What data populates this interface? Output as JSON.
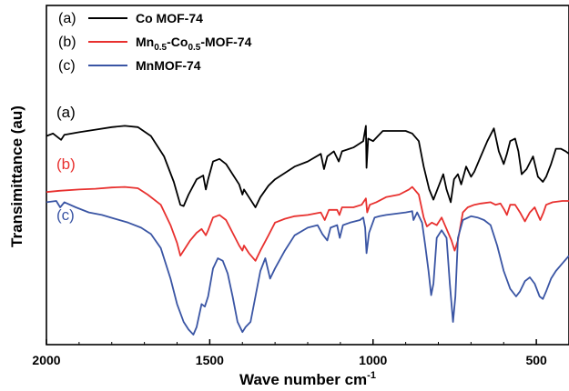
{
  "chart_data": {
    "type": "line",
    "xlabel": "Wave number cm",
    "xlabel_superscript": "-1",
    "ylabel": "Transimittance (au)",
    "xlim": [
      2000,
      400
    ],
    "x_reversed": true,
    "x_ticks": [
      2000,
      1500,
      1000,
      500
    ],
    "y_ticks": [],
    "ylim": [
      0,
      100
    ],
    "legend_position": "top-left",
    "series": [
      {
        "name": "Co MOF-74",
        "letter": "(a)",
        "color": "#000000",
        "points": [
          [
            2000,
            78
          ],
          [
            1980,
            79
          ],
          [
            1955,
            76.5
          ],
          [
            1945,
            78.5
          ],
          [
            1900,
            79.5
          ],
          [
            1850,
            80.5
          ],
          [
            1800,
            81.5
          ],
          [
            1760,
            82
          ],
          [
            1720,
            81.5
          ],
          [
            1680,
            78
          ],
          [
            1640,
            70
          ],
          [
            1610,
            60
          ],
          [
            1590,
            51
          ],
          [
            1580,
            50.5
          ],
          [
            1565,
            55
          ],
          [
            1540,
            61
          ],
          [
            1520,
            62.5
          ],
          [
            1512,
            57
          ],
          [
            1505,
            61
          ],
          [
            1490,
            68
          ],
          [
            1470,
            69
          ],
          [
            1450,
            67
          ],
          [
            1430,
            63
          ],
          [
            1410,
            59
          ],
          [
            1400,
            55
          ],
          [
            1395,
            57
          ],
          [
            1380,
            54
          ],
          [
            1360,
            50
          ],
          [
            1345,
            54
          ],
          [
            1320,
            58.5
          ],
          [
            1300,
            61
          ],
          [
            1270,
            63.5
          ],
          [
            1240,
            66
          ],
          [
            1200,
            68
          ],
          [
            1160,
            71
          ],
          [
            1150,
            65
          ],
          [
            1140,
            70
          ],
          [
            1120,
            72
          ],
          [
            1105,
            68
          ],
          [
            1095,
            72
          ],
          [
            1060,
            73.5
          ],
          [
            1030,
            76
          ],
          [
            1022,
            82
          ],
          [
            1020,
            65.5
          ],
          [
            1015,
            77
          ],
          [
            1000,
            76
          ],
          [
            985,
            78
          ],
          [
            970,
            80
          ],
          [
            950,
            80
          ],
          [
            900,
            80
          ],
          [
            880,
            79
          ],
          [
            860,
            76
          ],
          [
            845,
            66
          ],
          [
            828,
            57
          ],
          [
            815,
            53
          ],
          [
            800,
            58
          ],
          [
            785,
            63
          ],
          [
            775,
            57
          ],
          [
            762,
            52
          ],
          [
            752,
            61
          ],
          [
            740,
            63
          ],
          [
            730,
            59
          ],
          [
            715,
            66
          ],
          [
            700,
            62
          ],
          [
            690,
            64
          ],
          [
            670,
            70
          ],
          [
            650,
            76
          ],
          [
            630,
            81
          ],
          [
            615,
            72
          ],
          [
            600,
            67
          ],
          [
            590,
            71
          ],
          [
            580,
            76
          ],
          [
            565,
            77
          ],
          [
            555,
            72
          ],
          [
            545,
            63
          ],
          [
            530,
            65
          ],
          [
            510,
            70
          ],
          [
            495,
            62
          ],
          [
            480,
            60
          ],
          [
            470,
            62
          ],
          [
            455,
            67
          ],
          [
            440,
            73
          ],
          [
            425,
            73
          ],
          [
            410,
            72
          ],
          [
            400,
            71
          ]
        ]
      },
      {
        "name": "Mn0.5-Co0.5-MOF-74",
        "name_parts": {
          "prefix": "Mn",
          "sub1": "0.5",
          "mid": "-Co",
          "sub2": "0.5",
          "suffix": "-MOF-74"
        },
        "letter": "(b)",
        "color": "#e8312f",
        "points": [
          [
            2000,
            56
          ],
          [
            1960,
            56.5
          ],
          [
            1900,
            57
          ],
          [
            1850,
            57.3
          ],
          [
            1800,
            57.8
          ],
          [
            1760,
            58
          ],
          [
            1720,
            57.5
          ],
          [
            1690,
            55
          ],
          [
            1650,
            51
          ],
          [
            1620,
            43
          ],
          [
            1600,
            36
          ],
          [
            1590,
            31
          ],
          [
            1580,
            33
          ],
          [
            1560,
            37
          ],
          [
            1540,
            40
          ],
          [
            1525,
            41.5
          ],
          [
            1512,
            39
          ],
          [
            1505,
            41
          ],
          [
            1490,
            46
          ],
          [
            1470,
            47
          ],
          [
            1450,
            45
          ],
          [
            1430,
            40
          ],
          [
            1410,
            35
          ],
          [
            1400,
            33
          ],
          [
            1395,
            35
          ],
          [
            1380,
            32
          ],
          [
            1360,
            29
          ],
          [
            1345,
            33
          ],
          [
            1320,
            39
          ],
          [
            1300,
            44
          ],
          [
            1270,
            45.5
          ],
          [
            1240,
            46.5
          ],
          [
            1200,
            47
          ],
          [
            1160,
            48
          ],
          [
            1148,
            45
          ],
          [
            1135,
            49
          ],
          [
            1110,
            49
          ],
          [
            1103,
            47
          ],
          [
            1095,
            50
          ],
          [
            1060,
            50
          ],
          [
            1035,
            51
          ],
          [
            1022,
            53.5
          ],
          [
            1018,
            48
          ],
          [
            1010,
            51
          ],
          [
            990,
            52
          ],
          [
            960,
            54
          ],
          [
            920,
            55
          ],
          [
            890,
            57
          ],
          [
            880,
            58
          ],
          [
            860,
            55
          ],
          [
            845,
            46
          ],
          [
            835,
            42.5
          ],
          [
            820,
            44
          ],
          [
            805,
            43
          ],
          [
            790,
            46
          ],
          [
            775,
            41.5
          ],
          [
            760,
            37
          ],
          [
            750,
            33
          ],
          [
            740,
            37
          ],
          [
            725,
            48
          ],
          [
            710,
            50
          ],
          [
            690,
            51
          ],
          [
            670,
            51.5
          ],
          [
            640,
            52
          ],
          [
            625,
            51
          ],
          [
            610,
            51.5
          ],
          [
            598,
            49
          ],
          [
            590,
            47
          ],
          [
            580,
            51
          ],
          [
            565,
            51
          ],
          [
            550,
            48
          ],
          [
            535,
            44.5
          ],
          [
            520,
            48
          ],
          [
            505,
            50
          ],
          [
            495,
            47
          ],
          [
            488,
            45
          ],
          [
            478,
            48
          ],
          [
            470,
            51
          ],
          [
            450,
            52
          ],
          [
            420,
            52.5
          ],
          [
            400,
            52.5
          ]
        ]
      },
      {
        "name": "MnMOF-74",
        "letter": "(c)",
        "color": "#3a55a4",
        "points": [
          [
            2000,
            52
          ],
          [
            1970,
            52.5
          ],
          [
            1958,
            50
          ],
          [
            1945,
            52
          ],
          [
            1910,
            50
          ],
          [
            1870,
            48
          ],
          [
            1830,
            47
          ],
          [
            1790,
            45.5
          ],
          [
            1750,
            44
          ],
          [
            1710,
            42
          ],
          [
            1680,
            39.5
          ],
          [
            1650,
            34
          ],
          [
            1620,
            22
          ],
          [
            1600,
            12
          ],
          [
            1580,
            5
          ],
          [
            1565,
            2
          ],
          [
            1550,
            0
          ],
          [
            1540,
            3
          ],
          [
            1525,
            12
          ],
          [
            1515,
            11
          ],
          [
            1505,
            15
          ],
          [
            1490,
            26
          ],
          [
            1475,
            30
          ],
          [
            1460,
            29
          ],
          [
            1445,
            24
          ],
          [
            1430,
            15
          ],
          [
            1415,
            5
          ],
          [
            1400,
            1
          ],
          [
            1390,
            3
          ],
          [
            1375,
            5
          ],
          [
            1360,
            15
          ],
          [
            1345,
            25
          ],
          [
            1330,
            30
          ],
          [
            1315,
            22
          ],
          [
            1300,
            26
          ],
          [
            1270,
            33
          ],
          [
            1240,
            39
          ],
          [
            1200,
            42
          ],
          [
            1170,
            43
          ],
          [
            1155,
            39.5
          ],
          [
            1140,
            37
          ],
          [
            1130,
            42
          ],
          [
            1110,
            43
          ],
          [
            1102,
            38
          ],
          [
            1092,
            43
          ],
          [
            1070,
            44
          ],
          [
            1040,
            45
          ],
          [
            1030,
            46
          ],
          [
            1024,
            42
          ],
          [
            1020,
            32
          ],
          [
            1012,
            40
          ],
          [
            995,
            46
          ],
          [
            980,
            46.5
          ],
          [
            960,
            47
          ],
          [
            930,
            47.5
          ],
          [
            900,
            48
          ],
          [
            880,
            48.5
          ],
          [
            876,
            45
          ],
          [
            865,
            48
          ],
          [
            850,
            44
          ],
          [
            840,
            35
          ],
          [
            830,
            25
          ],
          [
            822,
            15.5
          ],
          [
            815,
            20
          ],
          [
            805,
            38
          ],
          [
            790,
            41
          ],
          [
            775,
            38
          ],
          [
            765,
            20
          ],
          [
            755,
            5
          ],
          [
            748,
            15
          ],
          [
            740,
            38
          ],
          [
            725,
            45
          ],
          [
            700,
            46.5
          ],
          [
            680,
            46
          ],
          [
            660,
            45
          ],
          [
            640,
            43
          ],
          [
            620,
            35
          ],
          [
            600,
            25
          ],
          [
            580,
            18
          ],
          [
            562,
            15
          ],
          [
            550,
            17
          ],
          [
            535,
            21
          ],
          [
            520,
            22.5
          ],
          [
            505,
            20
          ],
          [
            490,
            15
          ],
          [
            480,
            14
          ],
          [
            470,
            17
          ],
          [
            455,
            22
          ],
          [
            440,
            25
          ],
          [
            420,
            28
          ],
          [
            400,
            31
          ]
        ]
      }
    ]
  }
}
